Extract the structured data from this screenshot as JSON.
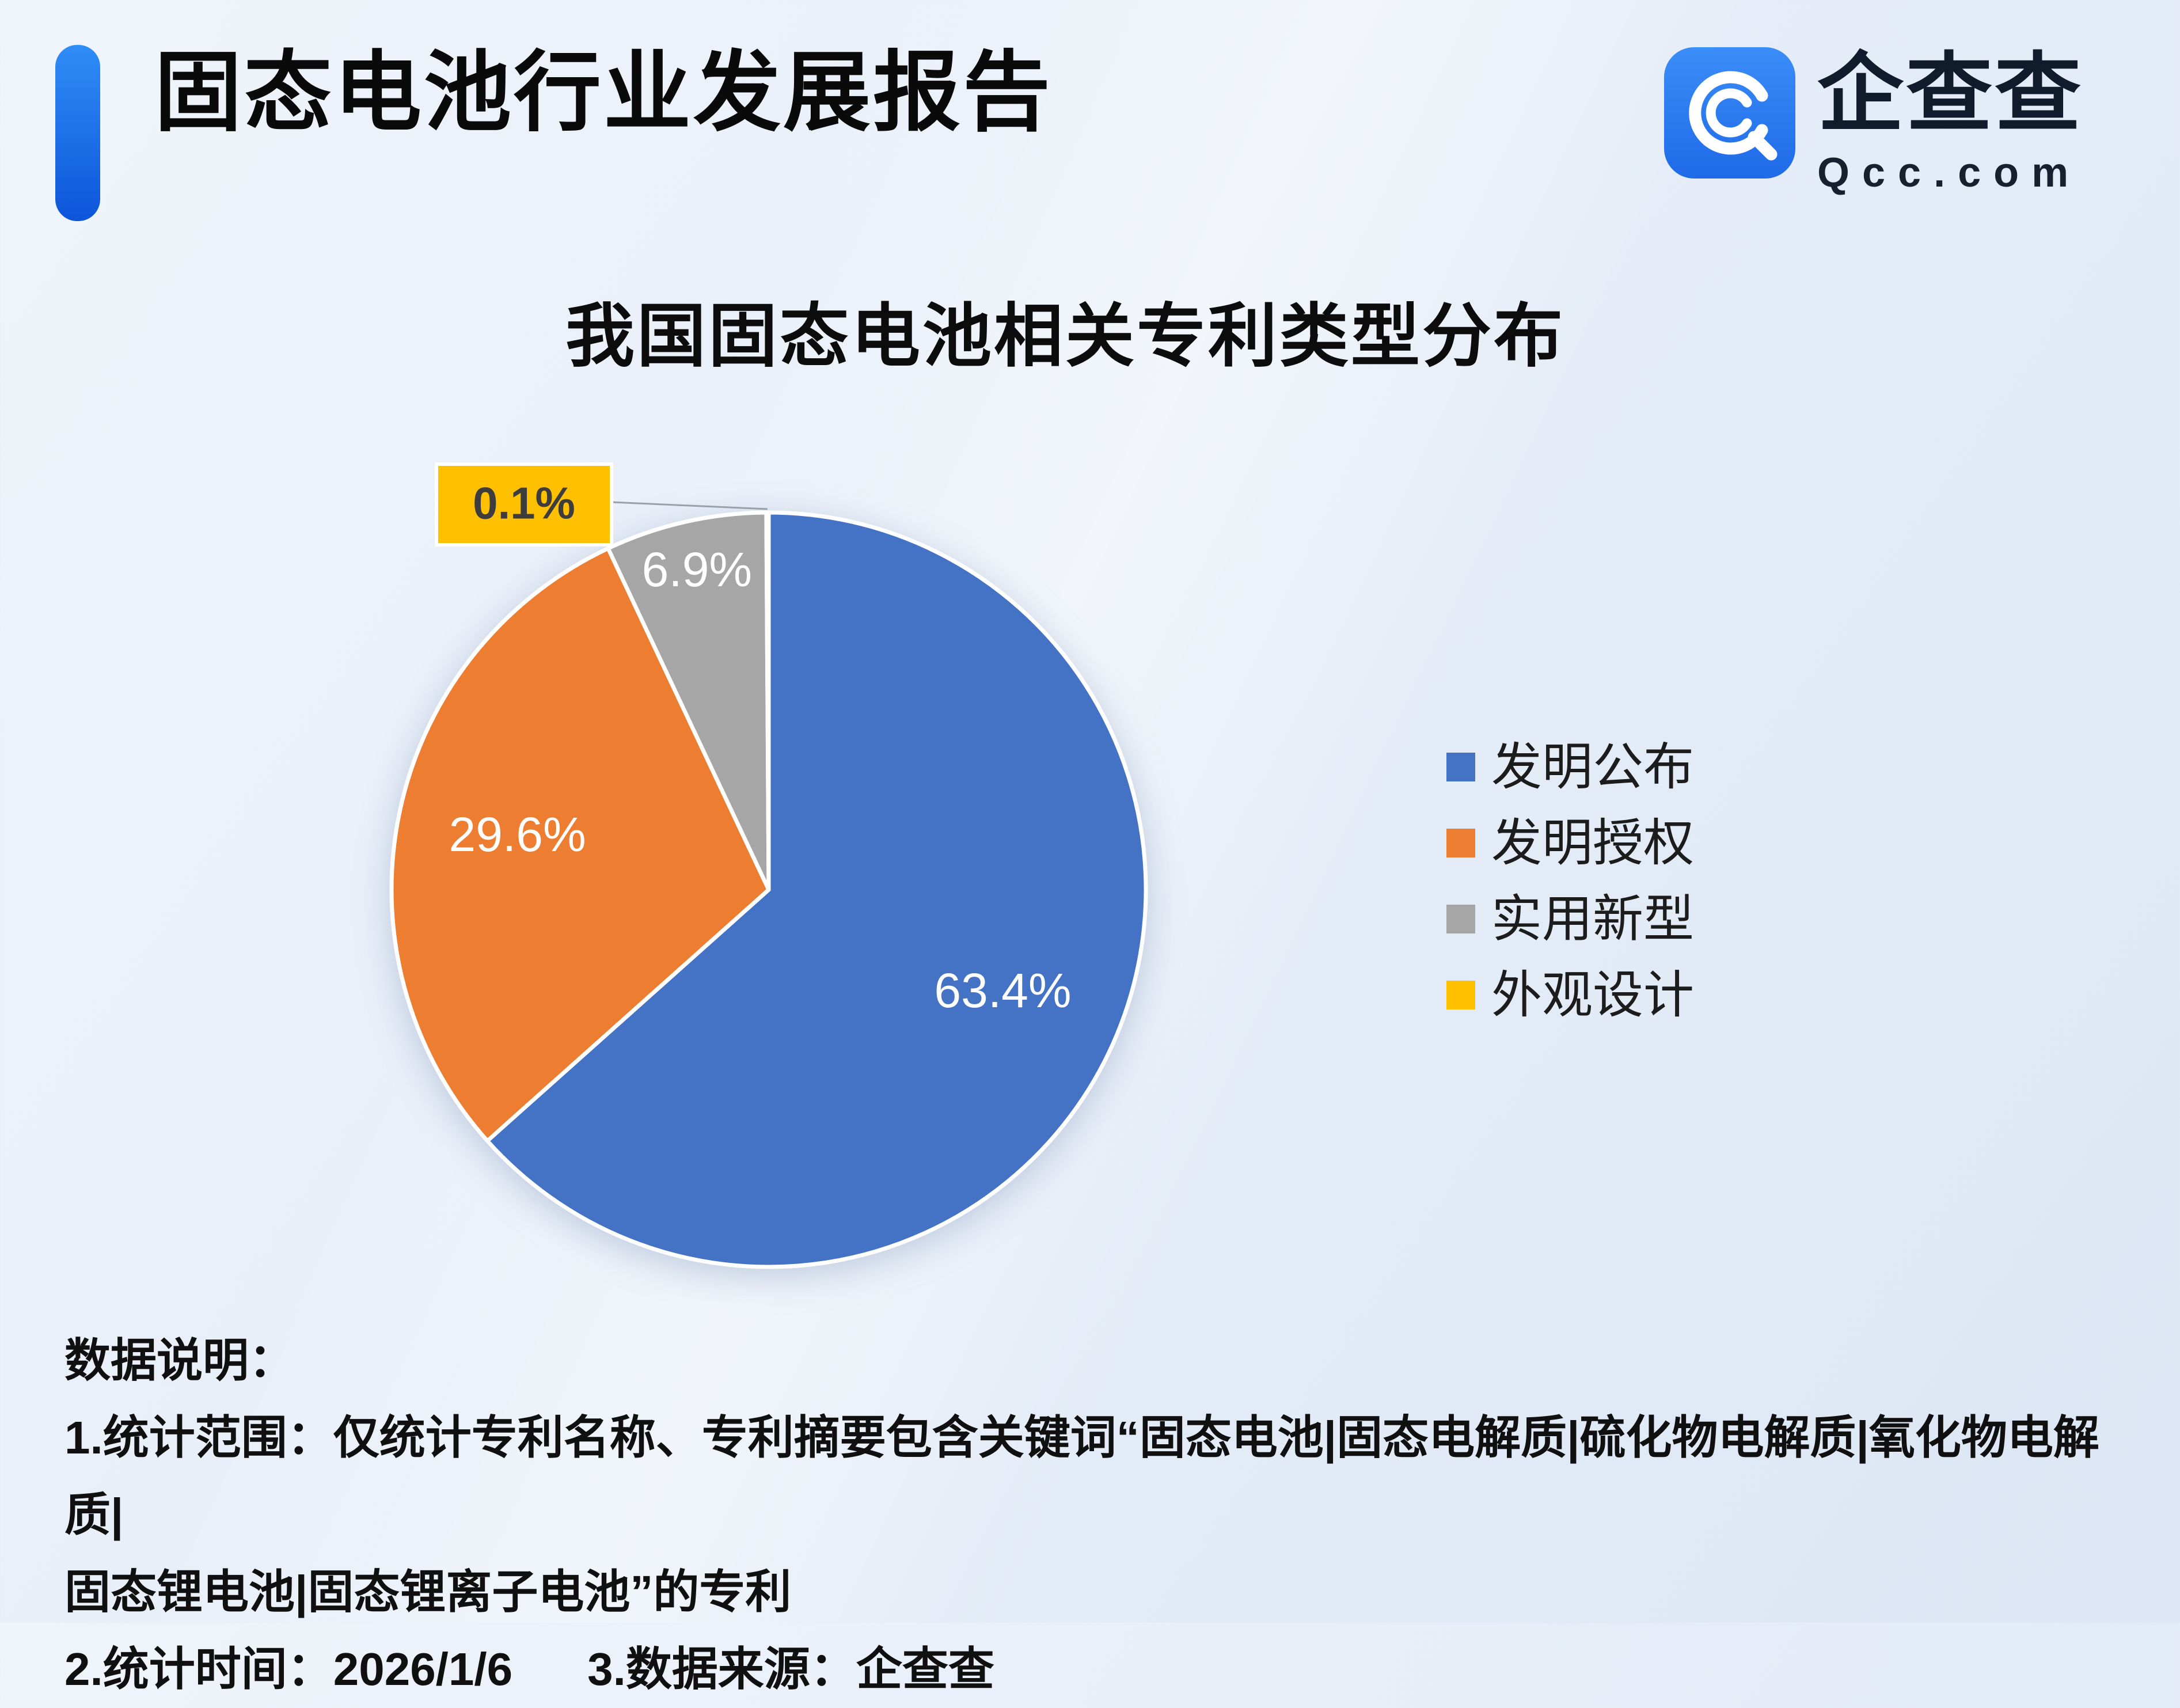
{
  "theme": {
    "accent": "#2e7ff2",
    "background_start": "#f0f4fb",
    "background_end": "#dce6f4",
    "text_primary": "#111111",
    "label_on_slice": "#ffffff"
  },
  "header": {
    "title": "固态电池行业发展报告",
    "logo": {
      "brand": "企查查",
      "domain": "Qcc.com"
    }
  },
  "chart_data": {
    "type": "pie",
    "title": "我国固态电池相关专利类型分布",
    "categories": [
      "发明公布",
      "发明授权",
      "实用新型",
      "外观设计"
    ],
    "values": [
      63.4,
      29.6,
      6.9,
      0.1
    ],
    "labels": [
      "63.4%",
      "29.6%",
      "6.9%",
      "0.1%"
    ],
    "colors": [
      "#4472c4",
      "#ed7d31",
      "#a6a6a6",
      "#ffc000"
    ],
    "start_angle_deg": 0,
    "direction": "clockwise",
    "legend_position": "right",
    "unit": "%"
  },
  "footnotes": {
    "heading": "数据说明：",
    "line1": "1.统计范围：仅统计专利名称、专利摘要包含关键词“固态电池|固态电解质|硫化物电解质|氧化物电解质|",
    "line2": "固态锂电池|固态锂离子电池”的专利",
    "stat_time": "2.统计时间：2026/1/6",
    "data_source": "3.数据来源：企查查"
  }
}
